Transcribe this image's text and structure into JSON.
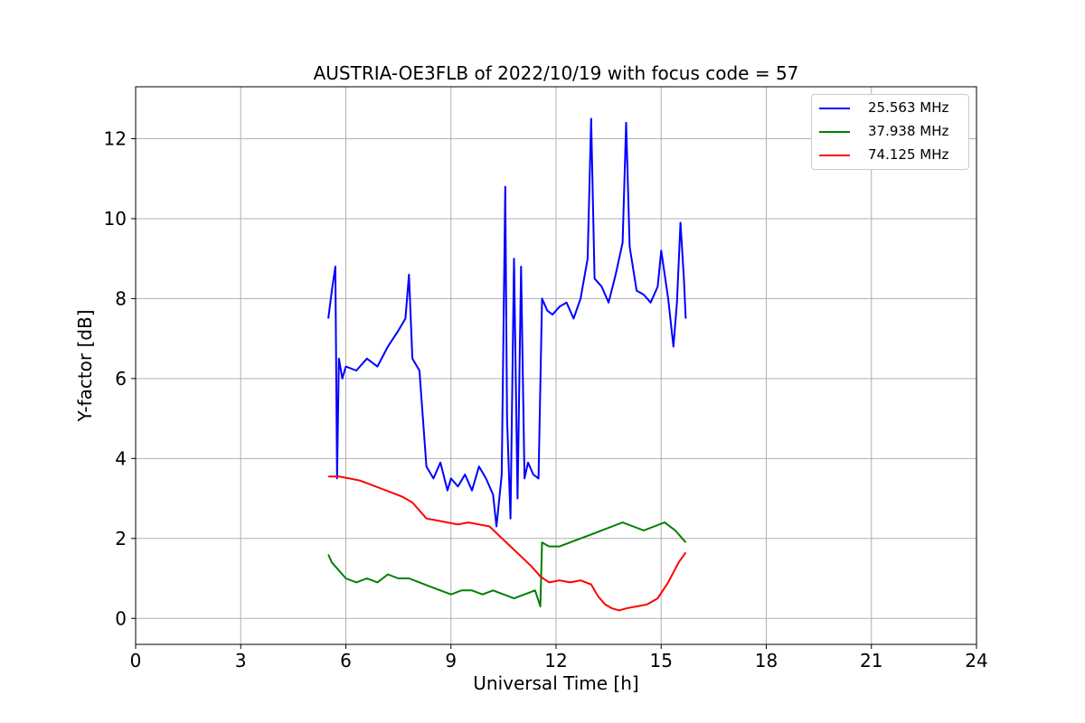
{
  "chart_data": {
    "type": "line",
    "title": "AUSTRIA-OE3FLB of 2022/10/19 with focus code = 57",
    "xlabel": "Universal Time [h]",
    "ylabel": "Y-factor [dB]",
    "xlim": [
      0,
      24
    ],
    "ylim": [
      -0.65,
      13.3
    ],
    "xticks": [
      "0",
      "3",
      "6",
      "9",
      "12",
      "15",
      "18",
      "21",
      "24"
    ],
    "yticks": [
      "0",
      "2",
      "4",
      "6",
      "8",
      "10",
      "12"
    ],
    "grid": true,
    "legend_position": "top-right",
    "series": [
      {
        "name": "25.563 MHz",
        "color": "#0000ff",
        "x": [
          5.5,
          5.6,
          5.7,
          5.75,
          5.8,
          5.9,
          6.0,
          6.3,
          6.6,
          6.9,
          7.2,
          7.5,
          7.7,
          7.8,
          7.9,
          8.1,
          8.3,
          8.5,
          8.7,
          8.9,
          9.0,
          9.2,
          9.4,
          9.6,
          9.8,
          10.0,
          10.2,
          10.3,
          10.45,
          10.55,
          10.6,
          10.7,
          10.8,
          10.9,
          11.0,
          11.1,
          11.2,
          11.35,
          11.5,
          11.6,
          11.75,
          11.9,
          12.1,
          12.3,
          12.5,
          12.7,
          12.9,
          13.0,
          13.1,
          13.3,
          13.5,
          13.7,
          13.9,
          14.0,
          14.1,
          14.3,
          14.5,
          14.7,
          14.9,
          15.0,
          15.2,
          15.35,
          15.45,
          15.55,
          15.65,
          15.7
        ],
        "values": [
          7.5,
          8.2,
          8.8,
          3.5,
          6.5,
          6.0,
          6.3,
          6.2,
          6.5,
          6.3,
          6.8,
          7.2,
          7.5,
          8.6,
          6.5,
          6.2,
          3.8,
          3.5,
          3.9,
          3.2,
          3.5,
          3.3,
          3.6,
          3.2,
          3.8,
          3.5,
          3.1,
          2.3,
          3.6,
          10.8,
          5.0,
          2.5,
          9.0,
          3.0,
          8.8,
          3.5,
          3.9,
          3.6,
          3.5,
          8.0,
          7.7,
          7.6,
          7.8,
          7.9,
          7.5,
          8.0,
          9.0,
          12.5,
          8.5,
          8.3,
          7.9,
          8.6,
          9.4,
          12.4,
          9.3,
          8.2,
          8.1,
          7.9,
          8.3,
          9.2,
          8.0,
          6.8,
          7.9,
          9.9,
          8.5,
          7.5
        ]
      },
      {
        "name": "37.938 MHz",
        "color": "#008000",
        "x": [
          5.5,
          5.6,
          5.8,
          6.0,
          6.3,
          6.6,
          6.9,
          7.2,
          7.5,
          7.8,
          8.1,
          8.4,
          8.7,
          9.0,
          9.3,
          9.6,
          9.9,
          10.2,
          10.5,
          10.8,
          11.1,
          11.4,
          11.55,
          11.6,
          11.8,
          12.1,
          12.4,
          12.7,
          13.0,
          13.3,
          13.6,
          13.9,
          14.2,
          14.5,
          14.8,
          15.1,
          15.4,
          15.7
        ],
        "values": [
          1.6,
          1.4,
          1.2,
          1.0,
          0.9,
          1.0,
          0.9,
          1.1,
          1.0,
          1.0,
          0.9,
          0.8,
          0.7,
          0.6,
          0.7,
          0.7,
          0.6,
          0.7,
          0.6,
          0.5,
          0.6,
          0.7,
          0.3,
          1.9,
          1.8,
          1.8,
          1.9,
          2.0,
          2.1,
          2.2,
          2.3,
          2.4,
          2.3,
          2.2,
          2.3,
          2.4,
          2.2,
          1.9
        ]
      },
      {
        "name": "74.125 MHz",
        "color": "#ff0000",
        "x": [
          5.5,
          5.8,
          6.1,
          6.4,
          6.7,
          7.0,
          7.3,
          7.6,
          7.9,
          8.1,
          8.3,
          8.6,
          8.9,
          9.2,
          9.5,
          9.8,
          10.1,
          10.4,
          10.7,
          11.0,
          11.3,
          11.55,
          11.8,
          12.1,
          12.4,
          12.7,
          13.0,
          13.2,
          13.4,
          13.6,
          13.8,
          14.0,
          14.3,
          14.6,
          14.9,
          15.2,
          15.5,
          15.7
        ],
        "values": [
          3.55,
          3.55,
          3.5,
          3.45,
          3.35,
          3.25,
          3.15,
          3.05,
          2.9,
          2.7,
          2.5,
          2.45,
          2.4,
          2.35,
          2.4,
          2.35,
          2.3,
          2.05,
          1.8,
          1.55,
          1.3,
          1.05,
          0.9,
          0.95,
          0.9,
          0.95,
          0.85,
          0.55,
          0.35,
          0.25,
          0.2,
          0.25,
          0.3,
          0.35,
          0.5,
          0.9,
          1.4,
          1.65
        ]
      }
    ]
  }
}
